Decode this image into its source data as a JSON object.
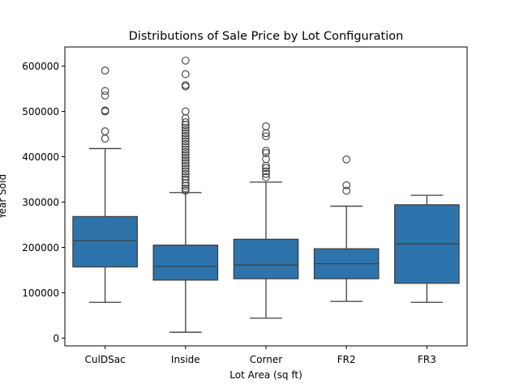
{
  "chart_data": {
    "type": "box",
    "title": "Distributions of Sale Price by Lot Configuration",
    "xlabel": "Lot Area (sq ft)",
    "ylabel": "Year Sold",
    "ylim": [
      -17000,
      642000
    ],
    "yticks": [
      0,
      100000,
      200000,
      300000,
      400000,
      500000,
      600000
    ],
    "ytick_labels": [
      "0",
      "100000",
      "200000",
      "300000",
      "400000",
      "500000",
      "600000"
    ],
    "grid": false,
    "box_color": "#2e74ac",
    "line_color": "#3f3f3f",
    "categories": [
      "CulDSac",
      "Inside",
      "Corner",
      "FR2",
      "FR3"
    ],
    "boxes": [
      {
        "category": "CulDSac",
        "whislo": 79000,
        "q1": 157000,
        "med": 215000,
        "q3": 268000,
        "whishi": 418000,
        "fliers": [
          440000,
          456000,
          500000,
          502000,
          535000,
          545000,
          590000
        ]
      },
      {
        "category": "Inside",
        "whislo": 13000,
        "q1": 128000,
        "med": 158000,
        "q3": 205000,
        "whishi": 321000,
        "fliers": [
          325000,
          330000,
          336000,
          342000,
          350000,
          356000,
          362000,
          368000,
          374000,
          380000,
          386000,
          392000,
          398000,
          404000,
          410000,
          416000,
          422000,
          428000,
          434000,
          440000,
          446000,
          452000,
          458000,
          464000,
          470000,
          476000,
          485000,
          500000,
          555000,
          558000,
          582000,
          612000
        ]
      },
      {
        "category": "Corner",
        "whislo": 44000,
        "q1": 131000,
        "med": 161000,
        "q3": 218000,
        "whishi": 344000,
        "fliers": [
          355000,
          362000,
          368000,
          375000,
          380000,
          395000,
          408000,
          413000,
          445000,
          452000,
          467000
        ]
      },
      {
        "category": "FR2",
        "whislo": 81000,
        "q1": 131000,
        "med": 164000,
        "q3": 197000,
        "whishi": 291000,
        "fliers": [
          325000,
          337000,
          394000
        ]
      },
      {
        "category": "FR3",
        "whislo": 79000,
        "q1": 121000,
        "med": 208000,
        "q3": 294000,
        "whishi": 315000,
        "fliers": []
      }
    ]
  }
}
